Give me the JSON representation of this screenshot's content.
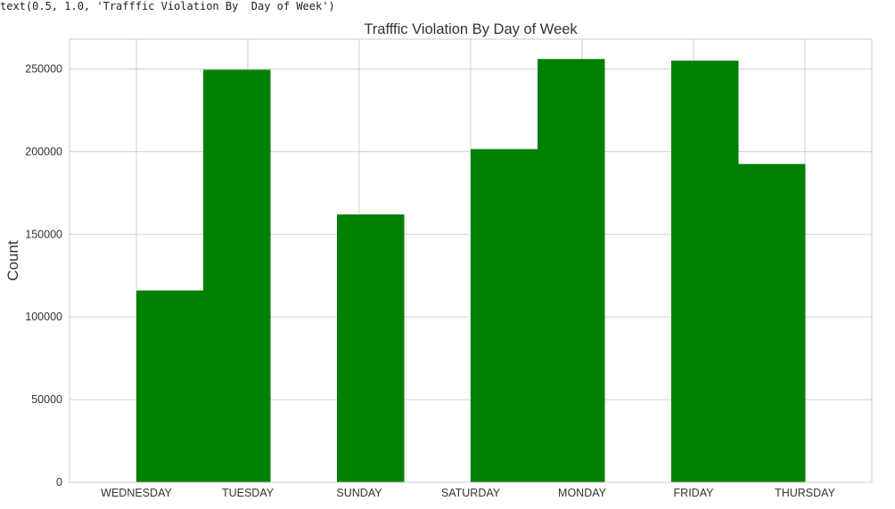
{
  "code_snippet": "text(0.5, 1.0, 'Trafffic Violation By  Day of Week')",
  "chart_data": {
    "type": "bar",
    "title": "Trafffic Violation By  Day of Week",
    "xlabel": "",
    "ylabel": "Count",
    "ylim": [
      0,
      268000
    ],
    "yticks": [
      0,
      50000,
      100000,
      150000,
      200000,
      250000
    ],
    "ytick_labels": [
      "0",
      "50000",
      "100000",
      "150000",
      "200000",
      "250000"
    ],
    "categories": [
      "WEDNESDAY",
      "TUESDAY",
      "SUNDAY",
      "SATURDAY",
      "MONDAY",
      "FRIDAY",
      "THURSDAY"
    ],
    "values": [
      116000,
      249500,
      162000,
      201500,
      256000,
      255000,
      192500
    ],
    "grid": true,
    "color": "#008000"
  }
}
